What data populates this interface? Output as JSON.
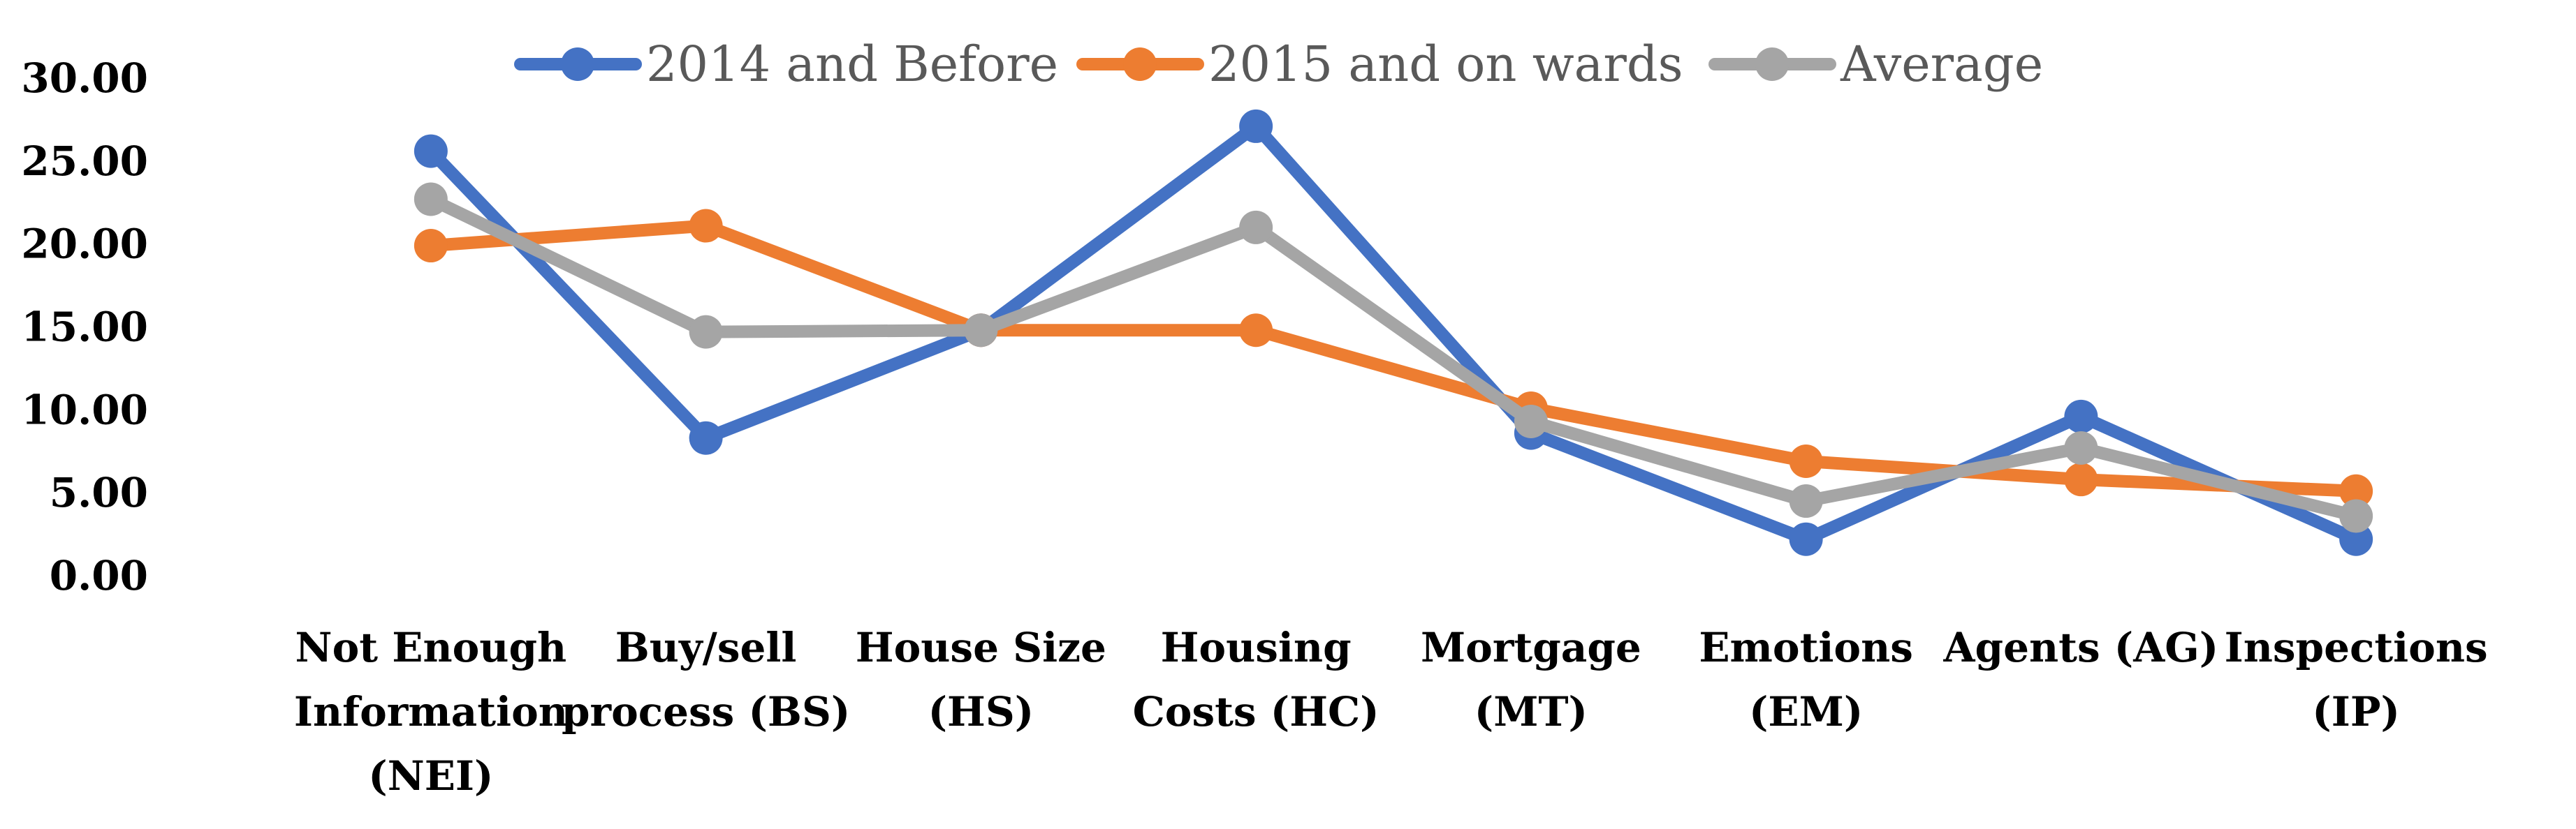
{
  "chart_data": {
    "type": "line",
    "categories": [
      [
        "Not Enough",
        "Information",
        "(NEI)"
      ],
      [
        "Buy/sell",
        "process (BS)"
      ],
      [
        "House Size",
        "(HS)"
      ],
      [
        "Housing",
        "Costs (HC)"
      ],
      [
        "Mortgage",
        "(MT)"
      ],
      [
        "Emotions",
        "(EM)"
      ],
      [
        "Agents (AG)"
      ],
      [
        "Inspections",
        "(IP)"
      ]
    ],
    "series": [
      {
        "name": "2014 and Before",
        "color": "#4472C4",
        "values": [
          25.6,
          8.3,
          14.8,
          27.1,
          8.6,
          2.2,
          9.6,
          2.2
        ]
      },
      {
        "name": "2015 and on wards",
        "color": "#ED7D31",
        "values": [
          19.9,
          21.1,
          14.8,
          14.8,
          10.1,
          6.9,
          5.8,
          5.1
        ]
      },
      {
        "name": "Average",
        "color": "#A5A5A5",
        "values": [
          22.7,
          14.7,
          14.8,
          21.0,
          9.3,
          4.5,
          7.7,
          3.6
        ]
      }
    ],
    "y_ticks": [
      "0.00",
      "5.00",
      "10.00",
      "15.00",
      "20.00",
      "25.00",
      "30.00"
    ],
    "ylim": [
      0,
      30
    ],
    "grid": false,
    "legend_position": "top"
  }
}
